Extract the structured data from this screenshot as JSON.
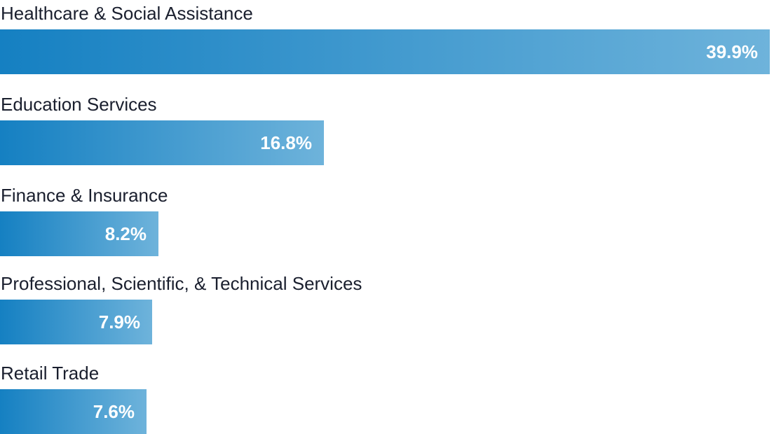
{
  "chart_data": {
    "type": "bar",
    "orientation": "horizontal",
    "categories": [
      "Healthcare & Social Assistance",
      "Education Services",
      "Finance & Insurance",
      "Professional, Scientific, & Technical Services",
      "Retail Trade"
    ],
    "values": [
      39.9,
      16.8,
      8.2,
      7.9,
      7.6
    ],
    "value_labels": [
      "39.9%",
      "16.8%",
      "8.2%",
      "7.9%",
      "7.6%"
    ],
    "unit": "%",
    "xlim": [
      0,
      39.9
    ],
    "grid": false,
    "legend": "none",
    "title": "",
    "xlabel": "",
    "ylabel": ""
  },
  "colors": {
    "bar_gradient_start": "#1580C2",
    "bar_gradient_end": "#6EB3DB",
    "label_text": "#1a1f2e",
    "value_text": "#ffffff"
  }
}
